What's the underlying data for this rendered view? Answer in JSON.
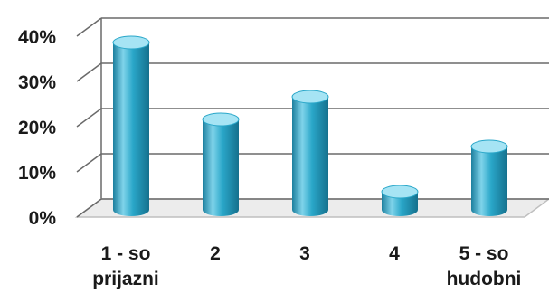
{
  "chart_data": {
    "type": "bar",
    "style": "3d-cylinder",
    "categories": [
      [
        "1 - so",
        "prijazni"
      ],
      [
        "2"
      ],
      [
        "3"
      ],
      [
        "4"
      ],
      [
        "5 - so",
        "hudobni"
      ]
    ],
    "values": [
      37,
      20,
      25,
      4,
      14
    ],
    "unit": "%",
    "ylim": [
      0,
      40
    ],
    "yticks": [
      "0%",
      "10%",
      "20%",
      "30%",
      "40%"
    ],
    "grid": true,
    "legend": "none",
    "colors": {
      "bar_light": "#7fd3ea",
      "bar_mid": "#2aa7c9",
      "bar_dark": "#1c7f9e",
      "top_cap": "#a6e4f4",
      "grid": "#6a6a6a",
      "floor": "#bfbfbf"
    }
  }
}
